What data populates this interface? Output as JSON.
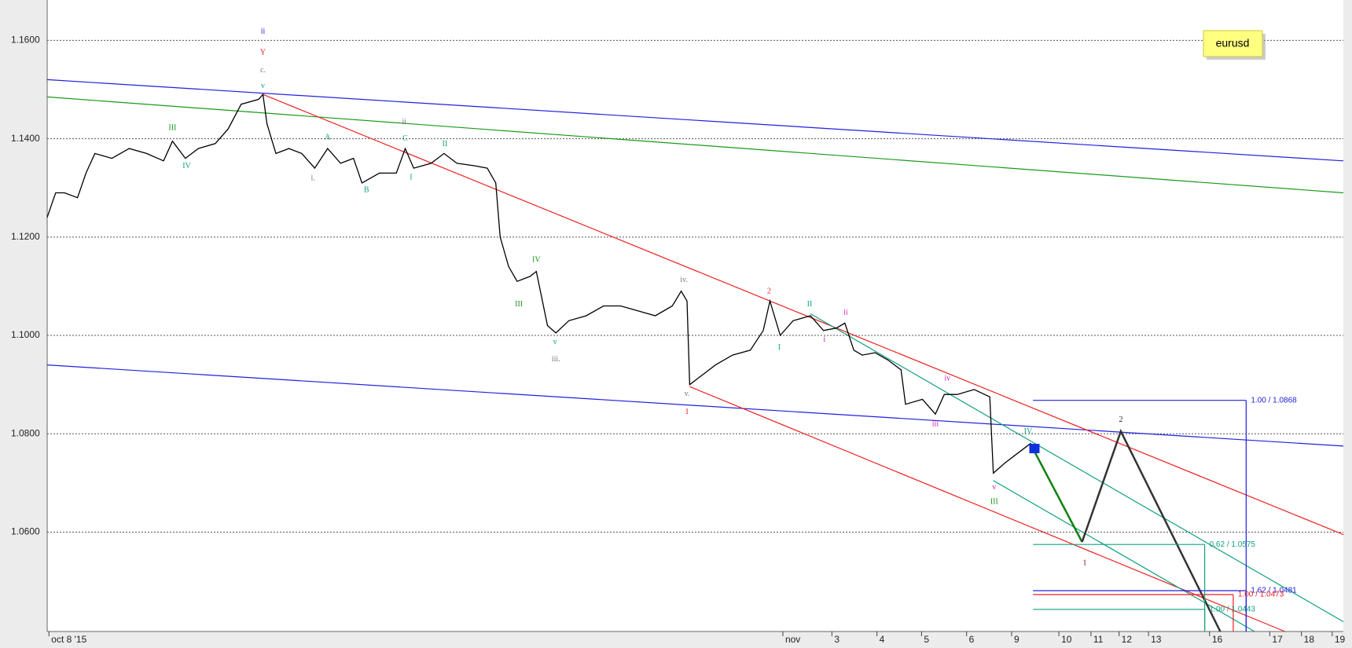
{
  "chart_data": {
    "type": "line",
    "note": "eurusd",
    "ylim": [
      1.0398,
      1.1682
    ],
    "yticks": [
      {
        "value": 1.06,
        "label": "1.0600"
      },
      {
        "value": 1.08,
        "label": "1.0800"
      },
      {
        "value": 1.1,
        "label": "1.1000"
      },
      {
        "value": 1.12,
        "label": "1.1200"
      },
      {
        "value": 1.14,
        "label": "1.1400"
      },
      {
        "value": 1.16,
        "label": "1.1600"
      }
    ],
    "grid": true,
    "xlim": [
      -0.04,
      29.03
    ],
    "xticks": [
      {
        "value": 0,
        "label": "oct 8 '15"
      },
      {
        "value": 16.46,
        "label": "nov"
      },
      {
        "value": 17.56,
        "label": "3"
      },
      {
        "value": 18.57,
        "label": "4"
      },
      {
        "value": 19.57,
        "label": "5"
      },
      {
        "value": 20.58,
        "label": "6"
      },
      {
        "value": 21.59,
        "label": "9"
      },
      {
        "value": 22.65,
        "label": "10"
      },
      {
        "value": 23.37,
        "label": "11"
      },
      {
        "value": 24.0,
        "label": "12"
      },
      {
        "value": 24.66,
        "label": "13"
      },
      {
        "value": 26.03,
        "label": "16"
      },
      {
        "value": 27.38,
        "label": "17"
      },
      {
        "value": 28.09,
        "label": "18"
      },
      {
        "value": 28.78,
        "label": "19"
      }
    ],
    "price": {
      "color": "#000000",
      "x": [
        -0.04,
        0.15,
        0.35,
        0.64,
        0.83,
        1.03,
        1.41,
        1.8,
        2.19,
        2.57,
        2.77,
        3.06,
        3.35,
        3.73,
        4.02,
        4.31,
        4.7,
        4.8,
        4.89,
        5.09,
        5.38,
        5.67,
        5.96,
        6.25,
        6.54,
        6.83,
        7.02,
        7.41,
        7.79,
        7.99,
        8.18,
        8.57,
        8.86,
        9.15,
        9.54,
        9.83,
        10.02,
        10.12,
        10.31,
        10.5,
        10.79,
        10.93,
        11.18,
        11.37,
        11.66,
        12.05,
        12.44,
        12.82,
        13.21,
        13.6,
        13.98,
        14.18,
        14.31,
        14.37,
        14.66,
        14.95,
        15.33,
        15.73,
        16.02,
        16.17,
        16.4,
        16.69,
        17.08,
        17.37,
        17.66,
        17.85,
        18.05,
        18.24,
        18.53,
        18.82,
        19.11,
        19.21,
        19.59,
        19.88,
        20.08,
        20.37,
        20.75,
        21.1,
        21.18,
        21.43,
        21.72,
        22.01,
        22.11
      ],
      "values": [
        1.124,
        1.129,
        1.129,
        1.128,
        1.133,
        1.137,
        1.136,
        1.138,
        1.137,
        1.1355,
        1.1395,
        1.136,
        1.138,
        1.139,
        1.142,
        1.147,
        1.148,
        1.149,
        1.143,
        1.137,
        1.138,
        1.137,
        1.134,
        1.138,
        1.135,
        1.136,
        1.131,
        1.133,
        1.133,
        1.138,
        1.134,
        1.135,
        1.137,
        1.135,
        1.1345,
        1.134,
        1.131,
        1.12,
        1.114,
        1.111,
        1.112,
        1.113,
        1.102,
        1.1005,
        1.103,
        1.104,
        1.106,
        1.106,
        1.105,
        1.104,
        1.106,
        1.109,
        1.107,
        1.09,
        1.092,
        1.094,
        1.096,
        1.097,
        1.101,
        1.107,
        1.1,
        1.103,
        1.104,
        1.101,
        1.1015,
        1.1025,
        1.097,
        1.096,
        1.0965,
        1.095,
        1.093,
        1.086,
        1.087,
        1.084,
        1.088,
        1.088,
        1.089,
        1.0875,
        1.072,
        1.074,
        1.076,
        1.078,
        1.077
      ]
    },
    "lines": [
      {
        "color": "#2020e0",
        "x": [
          -0.04,
          29.03
        ],
        "values": [
          1.152,
          1.1355
        ]
      },
      {
        "color": "#1a9a1a",
        "x": [
          -0.04,
          29.03
        ],
        "values": [
          1.1485,
          1.129
        ]
      },
      {
        "color": "#2020e0",
        "x": [
          -0.04,
          29.03
        ],
        "values": [
          1.094,
          1.0775
        ]
      },
      {
        "color": "#ee2020",
        "x": [
          4.8,
          29.03
        ],
        "values": [
          1.149,
          1.0595
        ]
      },
      {
        "color": "#ee2020",
        "x": [
          14.37,
          27.72
        ],
        "values": [
          1.0896,
          1.0398
        ]
      },
      {
        "color": "#10a080",
        "x": [
          17.08,
          29.03
        ],
        "values": [
          1.1044,
          1.0418
        ]
      },
      {
        "color": "#10a080",
        "x": [
          21.18,
          27.04
        ],
        "values": [
          1.0705,
          1.0398
        ]
      },
      {
        "color": "#108010",
        "x": [
          22.01,
          23.17
        ],
        "values": [
          1.078,
          1.058
        ]
      },
      {
        "color": "#333333",
        "x": [
          23.17,
          24.04,
          26.27
        ],
        "values": [
          1.058,
          1.0805,
          1.0398
        ]
      }
    ],
    "levels": [
      {
        "label": "1.00 / 1.0868",
        "value": 1.0868,
        "x": [
          22.07,
          26.85
        ],
        "color": "#2020e0"
      },
      {
        "label": "1.62 / 1.0481",
        "value": 1.0481,
        "x": [
          22.07,
          26.85
        ],
        "color": "#2020e0"
      },
      {
        "label": "1.00 / 1.0473",
        "value": 1.0473,
        "x": [
          22.07,
          26.56
        ],
        "color": "#ee2020"
      },
      {
        "label": "0.62 / 1.0575",
        "value": 1.0575,
        "x": [
          22.07,
          25.92
        ],
        "color": "#10a080"
      },
      {
        "label": "1.00 / 1.0443",
        "value": 1.0443,
        "x": [
          22.07,
          25.92
        ],
        "color": "#10a080"
      }
    ],
    "annotations": [
      {
        "text": "ii",
        "x": 4.8,
        "y": 1.1618,
        "color": "#2020e0"
      },
      {
        "text": "Y",
        "x": 4.8,
        "y": 1.1575,
        "color": "#ee2020"
      },
      {
        "text": "c.",
        "x": 4.8,
        "y": 1.1539,
        "color": "#777777"
      },
      {
        "text": "v",
        "x": 4.8,
        "y": 1.1507,
        "color": "#10a080"
      },
      {
        "text": "III",
        "x": 2.77,
        "y": 1.1421,
        "color": "#1a9a1a"
      },
      {
        "text": "IV",
        "x": 3.09,
        "y": 1.1344,
        "color": "#10a080"
      },
      {
        "text": "i.",
        "x": 5.92,
        "y": 1.1319,
        "color": "#777777"
      },
      {
        "text": "A",
        "x": 6.25,
        "y": 1.1402,
        "color": "#10a080"
      },
      {
        "text": "B",
        "x": 7.12,
        "y": 1.1295,
        "color": "#10a080"
      },
      {
        "text": "ii.",
        "x": 7.99,
        "y": 1.1433,
        "color": "#777777"
      },
      {
        "text": "C",
        "x": 7.99,
        "y": 1.14,
        "color": "#10a080"
      },
      {
        "text": "I",
        "x": 8.12,
        "y": 1.1321,
        "color": "#10a080"
      },
      {
        "text": "II",
        "x": 8.88,
        "y": 1.1389,
        "color": "#10a080"
      },
      {
        "text": "IV",
        "x": 10.93,
        "y": 1.1153,
        "color": "#1a9a1a"
      },
      {
        "text": "III",
        "x": 10.54,
        "y": 1.1063,
        "color": "#1a9a1a"
      },
      {
        "text": "v",
        "x": 11.35,
        "y": 1.0986,
        "color": "#10a080"
      },
      {
        "text": "iii.",
        "x": 11.37,
        "y": 1.0951,
        "color": "#777777"
      },
      {
        "text": "iv.",
        "x": 14.24,
        "y": 1.1112,
        "color": "#777777"
      },
      {
        "text": "v.",
        "x": 14.31,
        "y": 1.0881,
        "color": "#777777"
      },
      {
        "text": "1",
        "x": 14.31,
        "y": 1.0844,
        "color": "#ee2020"
      },
      {
        "text": "2",
        "x": 16.15,
        "y": 1.1089,
        "color": "#ee2020"
      },
      {
        "text": "I",
        "x": 16.38,
        "y": 1.0975,
        "color": "#10a080"
      },
      {
        "text": "II",
        "x": 17.06,
        "y": 1.1063,
        "color": "#10a080"
      },
      {
        "text": "ii",
        "x": 17.87,
        "y": 1.1046,
        "color": "#d020a0"
      },
      {
        "text": "i",
        "x": 17.39,
        "y": 1.0991,
        "color": "#d020a0"
      },
      {
        "text": "iv",
        "x": 20.15,
        "y": 1.0912,
        "color": "#d020a0"
      },
      {
        "text": "iii",
        "x": 19.88,
        "y": 1.0819,
        "color": "#d020a0"
      },
      {
        "text": "IV.",
        "x": 21.97,
        "y": 1.0804,
        "color": "#10a080"
      },
      {
        "text": "v",
        "x": 21.2,
        "y": 1.0691,
        "color": "#d020a0"
      },
      {
        "text": "III",
        "x": 21.2,
        "y": 1.0661,
        "color": "#1a9a1a"
      },
      {
        "text": "1",
        "x": 23.23,
        "y": 1.0537,
        "color": "#8a1010"
      },
      {
        "text": "2",
        "x": 24.04,
        "y": 1.0828,
        "color": "#222222"
      }
    ]
  }
}
